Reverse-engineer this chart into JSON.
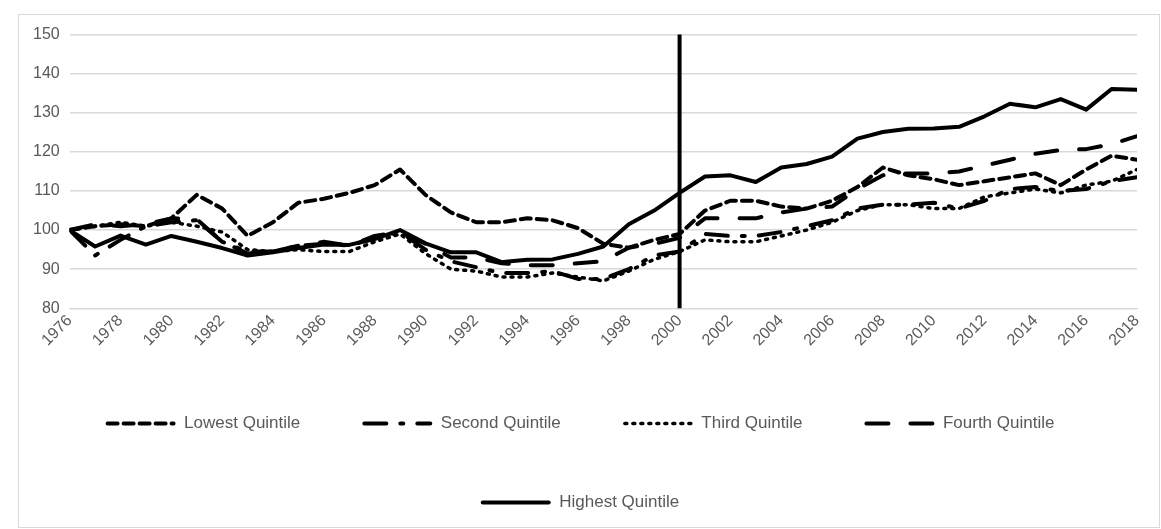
{
  "chart_data": {
    "type": "line",
    "x": [
      1976,
      1977,
      1978,
      1979,
      1980,
      1981,
      1982,
      1983,
      1984,
      1985,
      1986,
      1987,
      1988,
      1989,
      1990,
      1991,
      1992,
      1993,
      1994,
      1995,
      1996,
      1997,
      1998,
      1999,
      2000,
      2001,
      2002,
      2003,
      2004,
      2005,
      2006,
      2007,
      2008,
      2009,
      2010,
      2011,
      2012,
      2013,
      2014,
      2015,
      2016,
      2017,
      2018
    ],
    "series": [
      {
        "name": "Lowest Quintile",
        "color": "#000000",
        "line_style": "dashed",
        "values": [
          100,
          101,
          101.5,
          101,
          103,
          109,
          105.5,
          98.5,
          102,
          107,
          108,
          109.5,
          111.5,
          115.5,
          109,
          104.5,
          102,
          102,
          103,
          102.5,
          100.5,
          96.5,
          95.5,
          97.5,
          99,
          105,
          107.5,
          107.5,
          106,
          105.5,
          107.5,
          111,
          116,
          114,
          113,
          111.5,
          112.5,
          113.5,
          114.5,
          111.5,
          115.5,
          119,
          118
        ]
      },
      {
        "name": "Second Quintile",
        "color": "#000000",
        "line_style": "dash_dot",
        "values": [
          100,
          93.5,
          97.5,
          101,
          102,
          102.5,
          97,
          94.5,
          94.5,
          96,
          96.5,
          96,
          98,
          99.5,
          95,
          92,
          90.5,
          89,
          89,
          89.5,
          87.5,
          87.5,
          90,
          93.5,
          94.5,
          99,
          98.5,
          98.5,
          99.5,
          101,
          102.5,
          105.5,
          106.5,
          106.5,
          107,
          105.5,
          107.5,
          110.5,
          111,
          110,
          110.5,
          112.5,
          113.5
        ]
      },
      {
        "name": "Third Quintile",
        "color": "#000000",
        "line_style": "dotted",
        "values": [
          100,
          101,
          102,
          101,
          102,
          101,
          99.5,
          95,
          94.5,
          95,
          94.5,
          94.5,
          97,
          99,
          94,
          90,
          89.5,
          88,
          88,
          89,
          88,
          87,
          89.5,
          92.5,
          94.5,
          97.5,
          97,
          97,
          98.5,
          100,
          102,
          105,
          106.5,
          106.5,
          105.5,
          105.5,
          108.5,
          109.5,
          110.5,
          109.5,
          111.5,
          112.5,
          115.5
        ]
      },
      {
        "name": "Fourth Quintile",
        "color": "#000000",
        "line_style": "long_dashed",
        "values": [
          100,
          101.5,
          101,
          101.5,
          103,
          102.8,
          97,
          94,
          94.5,
          96,
          97,
          96,
          98.5,
          99.5,
          96.5,
          93,
          93,
          91.5,
          91,
          91,
          91.5,
          92,
          95.5,
          96.5,
          98,
          103,
          103,
          103,
          104.5,
          105.5,
          106,
          110.5,
          114,
          114.5,
          114.5,
          115,
          116.5,
          118,
          119.5,
          120.5,
          120.7,
          122,
          124
        ]
      },
      {
        "name": "Highest Quintile",
        "color": "#000000",
        "line_style": "solid",
        "values": [
          100,
          95.8,
          98.6,
          96.3,
          98.5,
          97,
          95.4,
          93.5,
          94.3,
          95.4,
          96.3,
          96.2,
          97.7,
          100,
          96.6,
          94.3,
          94.3,
          91.8,
          92.4,
          92.5,
          93.9,
          95.8,
          101.5,
          105,
          109.5,
          113.7,
          114,
          112.3,
          116,
          116.9,
          118.8,
          123.4,
          125.1,
          125.9,
          126,
          126.4,
          129.1,
          132.3,
          131.4,
          133.5,
          130.8,
          136.1,
          135.9
        ]
      }
    ],
    "xlim": [
      1976,
      2018
    ],
    "xticks": [
      1976,
      1978,
      1980,
      1982,
      1984,
      1986,
      1988,
      1990,
      1992,
      1994,
      1996,
      1998,
      2000,
      2002,
      2004,
      2006,
      2008,
      2010,
      2012,
      2014,
      2016,
      2018
    ],
    "ylim": [
      80,
      150
    ],
    "yticks": [
      80,
      90,
      100,
      110,
      120,
      130,
      140,
      150
    ],
    "grid": "y",
    "legend": "bottom",
    "marker": "none",
    "ref_lines": [
      {
        "axis": "x",
        "value": 2000,
        "color": "#000000"
      }
    ]
  }
}
